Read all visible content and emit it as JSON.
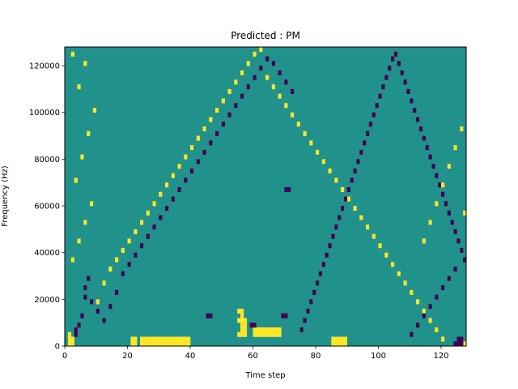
{
  "chart_data": {
    "type": "heatmap",
    "title": "Predicted : PM",
    "xlabel": "Time step",
    "ylabel": "Frequency (Hz)",
    "xlim": [
      0,
      128
    ],
    "ylim": [
      0,
      128000
    ],
    "x_ticks": [
      0,
      20,
      40,
      60,
      80,
      100,
      120
    ],
    "y_ticks": [
      0,
      20000,
      40000,
      60000,
      80000,
      100000,
      120000
    ],
    "grid": false,
    "n_time_steps": 128,
    "n_freq_bins": 64,
    "colors": {
      "background": "#21918c",
      "high": "#fde725",
      "low": "#440154"
    },
    "background_value": 0,
    "cells": [
      [
        1,
        0,
        1
      ],
      [
        1,
        1,
        1
      ],
      [
        1,
        2,
        1
      ],
      [
        2,
        0,
        1
      ],
      [
        2,
        1,
        1
      ],
      [
        21,
        0,
        1
      ],
      [
        21,
        1,
        1
      ],
      [
        22,
        0,
        1
      ],
      [
        22,
        1,
        1
      ],
      [
        24,
        0,
        1
      ],
      [
        24,
        1,
        1
      ],
      [
        25,
        0,
        1
      ],
      [
        25,
        1,
        1
      ],
      [
        26,
        0,
        1
      ],
      [
        26,
        1,
        1
      ],
      [
        27,
        0,
        1
      ],
      [
        27,
        1,
        1
      ],
      [
        28,
        0,
        1
      ],
      [
        28,
        1,
        1
      ],
      [
        29,
        0,
        1
      ],
      [
        29,
        1,
        1
      ],
      [
        30,
        0,
        1
      ],
      [
        30,
        1,
        1
      ],
      [
        31,
        0,
        1
      ],
      [
        31,
        1,
        1
      ],
      [
        32,
        0,
        1
      ],
      [
        32,
        1,
        1
      ],
      [
        33,
        0,
        1
      ],
      [
        33,
        1,
        1
      ],
      [
        34,
        0,
        1
      ],
      [
        34,
        1,
        1
      ],
      [
        35,
        0,
        1
      ],
      [
        35,
        1,
        1
      ],
      [
        36,
        0,
        1
      ],
      [
        36,
        1,
        1
      ],
      [
        37,
        0,
        1
      ],
      [
        37,
        1,
        1
      ],
      [
        38,
        0,
        1
      ],
      [
        38,
        1,
        1
      ],
      [
        39,
        0,
        1
      ],
      [
        39,
        1,
        1
      ],
      [
        55,
        2,
        1
      ],
      [
        56,
        2,
        1
      ],
      [
        57,
        2,
        1
      ],
      [
        56,
        3,
        1
      ],
      [
        57,
        3,
        1
      ],
      [
        56,
        4,
        1
      ],
      [
        57,
        4,
        1
      ],
      [
        55,
        5,
        1
      ],
      [
        56,
        5,
        1
      ],
      [
        57,
        5,
        1
      ],
      [
        56,
        6,
        1
      ],
      [
        55,
        7,
        1
      ],
      [
        56,
        7,
        1
      ],
      [
        60,
        2,
        1
      ],
      [
        61,
        2,
        1
      ],
      [
        62,
        2,
        1
      ],
      [
        63,
        2,
        1
      ],
      [
        64,
        2,
        1
      ],
      [
        65,
        2,
        1
      ],
      [
        66,
        2,
        1
      ],
      [
        67,
        2,
        1
      ],
      [
        68,
        2,
        1
      ],
      [
        60,
        3,
        1
      ],
      [
        61,
        3,
        1
      ],
      [
        62,
        3,
        1
      ],
      [
        63,
        3,
        1
      ],
      [
        64,
        3,
        1
      ],
      [
        65,
        3,
        1
      ],
      [
        66,
        3,
        1
      ],
      [
        67,
        3,
        1
      ],
      [
        68,
        3,
        1
      ],
      [
        85,
        0,
        1
      ],
      [
        85,
        1,
        1
      ],
      [
        86,
        0,
        1
      ],
      [
        86,
        1,
        1
      ],
      [
        87,
        0,
        1
      ],
      [
        87,
        1,
        1
      ],
      [
        88,
        0,
        1
      ],
      [
        88,
        1,
        1
      ],
      [
        89,
        0,
        1
      ],
      [
        89,
        1,
        1
      ],
      [
        127,
        0,
        1
      ],
      [
        126,
        0,
        -1
      ],
      [
        125,
        1,
        -1
      ],
      [
        126,
        1,
        -1
      ],
      [
        124,
        0,
        -1
      ],
      [
        125,
        0,
        -1
      ],
      [
        3,
        2,
        -1
      ],
      [
        3,
        3,
        -1
      ],
      [
        4,
        4,
        -1
      ],
      [
        5,
        6,
        -1
      ],
      [
        6,
        10,
        -1
      ],
      [
        6,
        12,
        -1
      ],
      [
        7,
        14,
        -1
      ],
      [
        8,
        9,
        -1
      ],
      [
        10,
        7,
        -1
      ],
      [
        12,
        5,
        -1
      ],
      [
        14,
        8,
        -1
      ],
      [
        16,
        11,
        -1
      ],
      [
        18,
        15,
        -1
      ],
      [
        20,
        17,
        -1
      ],
      [
        22,
        19,
        -1
      ],
      [
        24,
        21,
        -1
      ],
      [
        26,
        23,
        -1
      ],
      [
        28,
        25,
        -1
      ],
      [
        30,
        27,
        -1
      ],
      [
        32,
        29,
        -1
      ],
      [
        34,
        31,
        -1
      ],
      [
        36,
        33,
        -1
      ],
      [
        38,
        35,
        -1
      ],
      [
        40,
        37,
        -1
      ],
      [
        42,
        39,
        -1
      ],
      [
        44,
        41,
        -1
      ],
      [
        46,
        43,
        -1
      ],
      [
        48,
        45,
        -1
      ],
      [
        50,
        47,
        -1
      ],
      [
        52,
        49,
        -1
      ],
      [
        54,
        51,
        -1
      ],
      [
        56,
        53,
        -1
      ],
      [
        58,
        55,
        -1
      ],
      [
        60,
        57,
        -1
      ],
      [
        62,
        59,
        -1
      ],
      [
        64,
        61,
        -1
      ],
      [
        66,
        60,
        -1
      ],
      [
        68,
        58,
        -1
      ],
      [
        70,
        56,
        -1
      ],
      [
        72,
        54,
        -1
      ],
      [
        10,
        9,
        1
      ],
      [
        12,
        13,
        1
      ],
      [
        14,
        16,
        1
      ],
      [
        16,
        18,
        1
      ],
      [
        18,
        20,
        1
      ],
      [
        20,
        22,
        1
      ],
      [
        22,
        24,
        1
      ],
      [
        24,
        26,
        1
      ],
      [
        26,
        28,
        1
      ],
      [
        28,
        30,
        1
      ],
      [
        30,
        32,
        1
      ],
      [
        32,
        34,
        1
      ],
      [
        34,
        36,
        1
      ],
      [
        36,
        38,
        1
      ],
      [
        38,
        40,
        1
      ],
      [
        40,
        42,
        1
      ],
      [
        42,
        44,
        1
      ],
      [
        44,
        46,
        1
      ],
      [
        46,
        48,
        1
      ],
      [
        48,
        50,
        1
      ],
      [
        50,
        52,
        1
      ],
      [
        52,
        54,
        1
      ],
      [
        54,
        56,
        1
      ],
      [
        56,
        58,
        1
      ],
      [
        58,
        60,
        1
      ],
      [
        60,
        62,
        1
      ],
      [
        62,
        63,
        1
      ],
      [
        64,
        57,
        1
      ],
      [
        66,
        55,
        1
      ],
      [
        68,
        53,
        1
      ],
      [
        70,
        51,
        1
      ],
      [
        72,
        49,
        1
      ],
      [
        74,
        47,
        1
      ],
      [
        76,
        45,
        1
      ],
      [
        78,
        43,
        1
      ],
      [
        80,
        41,
        1
      ],
      [
        82,
        39,
        1
      ],
      [
        84,
        37,
        1
      ],
      [
        86,
        35,
        1
      ],
      [
        88,
        33,
        1
      ],
      [
        90,
        31,
        1
      ],
      [
        92,
        29,
        1
      ],
      [
        94,
        27,
        1
      ],
      [
        96,
        25,
        1
      ],
      [
        98,
        23,
        1
      ],
      [
        100,
        21,
        1
      ],
      [
        102,
        19,
        1
      ],
      [
        104,
        17,
        1
      ],
      [
        106,
        15,
        1
      ],
      [
        108,
        13,
        1
      ],
      [
        110,
        11,
        1
      ],
      [
        112,
        9,
        1
      ],
      [
        114,
        7,
        1
      ],
      [
        116,
        5,
        1
      ],
      [
        118,
        3,
        1
      ],
      [
        120,
        1,
        1
      ],
      [
        75,
        3,
        -1
      ],
      [
        76,
        5,
        -1
      ],
      [
        77,
        7,
        -1
      ],
      [
        78,
        9,
        -1
      ],
      [
        79,
        11,
        -1
      ],
      [
        80,
        13,
        -1
      ],
      [
        81,
        15,
        -1
      ],
      [
        82,
        17,
        -1
      ],
      [
        83,
        19,
        -1
      ],
      [
        84,
        21,
        -1
      ],
      [
        85,
        23,
        -1
      ],
      [
        86,
        25,
        -1
      ],
      [
        87,
        27,
        -1
      ],
      [
        88,
        29,
        -1
      ],
      [
        89,
        31,
        -1
      ],
      [
        90,
        33,
        -1
      ],
      [
        91,
        35,
        -1
      ],
      [
        92,
        37,
        -1
      ],
      [
        93,
        39,
        -1
      ],
      [
        94,
        41,
        -1
      ],
      [
        95,
        43,
        -1
      ],
      [
        96,
        45,
        -1
      ],
      [
        97,
        47,
        -1
      ],
      [
        98,
        49,
        -1
      ],
      [
        99,
        51,
        -1
      ],
      [
        100,
        53,
        -1
      ],
      [
        101,
        55,
        -1
      ],
      [
        102,
        57,
        -1
      ],
      [
        103,
        59,
        -1
      ],
      [
        104,
        61,
        -1
      ],
      [
        105,
        62,
        -1
      ],
      [
        106,
        60,
        -1
      ],
      [
        107,
        58,
        -1
      ],
      [
        108,
        56,
        -1
      ],
      [
        109,
        54,
        -1
      ],
      [
        110,
        52,
        -1
      ],
      [
        111,
        50,
        -1
      ],
      [
        112,
        48,
        -1
      ],
      [
        113,
        46,
        -1
      ],
      [
        114,
        44,
        -1
      ],
      [
        115,
        42,
        -1
      ],
      [
        116,
        40,
        -1
      ],
      [
        117,
        38,
        -1
      ],
      [
        118,
        36,
        -1
      ],
      [
        119,
        34,
        -1
      ],
      [
        120,
        32,
        -1
      ],
      [
        121,
        30,
        -1
      ],
      [
        122,
        28,
        -1
      ],
      [
        123,
        26,
        -1
      ],
      [
        124,
        24,
        -1
      ],
      [
        125,
        22,
        -1
      ],
      [
        126,
        20,
        -1
      ],
      [
        127,
        18,
        -1
      ],
      [
        2,
        18,
        1
      ],
      [
        4,
        22,
        1
      ],
      [
        6,
        26,
        1
      ],
      [
        8,
        30,
        1
      ],
      [
        3,
        35,
        1
      ],
      [
        5,
        40,
        1
      ],
      [
        7,
        45,
        1
      ],
      [
        9,
        50,
        1
      ],
      [
        4,
        55,
        1
      ],
      [
        6,
        60,
        1
      ],
      [
        2,
        62,
        1
      ],
      [
        110,
        2,
        -1
      ],
      [
        112,
        4,
        -1
      ],
      [
        114,
        6,
        -1
      ],
      [
        116,
        8,
        -1
      ],
      [
        118,
        10,
        -1
      ],
      [
        120,
        12,
        -1
      ],
      [
        122,
        14,
        -1
      ],
      [
        124,
        16,
        -1
      ],
      [
        45,
        6,
        -1
      ],
      [
        46,
        6,
        -1
      ],
      [
        59,
        4,
        -1
      ],
      [
        60,
        4,
        -1
      ],
      [
        70,
        33,
        -1
      ],
      [
        71,
        33,
        -1
      ],
      [
        69,
        6,
        -1
      ],
      [
        70,
        6,
        -1
      ],
      [
        114,
        22,
        1
      ],
      [
        116,
        26,
        1
      ],
      [
        118,
        30,
        1
      ],
      [
        120,
        34,
        1
      ],
      [
        122,
        38,
        1
      ],
      [
        124,
        42,
        1
      ],
      [
        126,
        46,
        1
      ],
      [
        127,
        28,
        1
      ]
    ]
  }
}
